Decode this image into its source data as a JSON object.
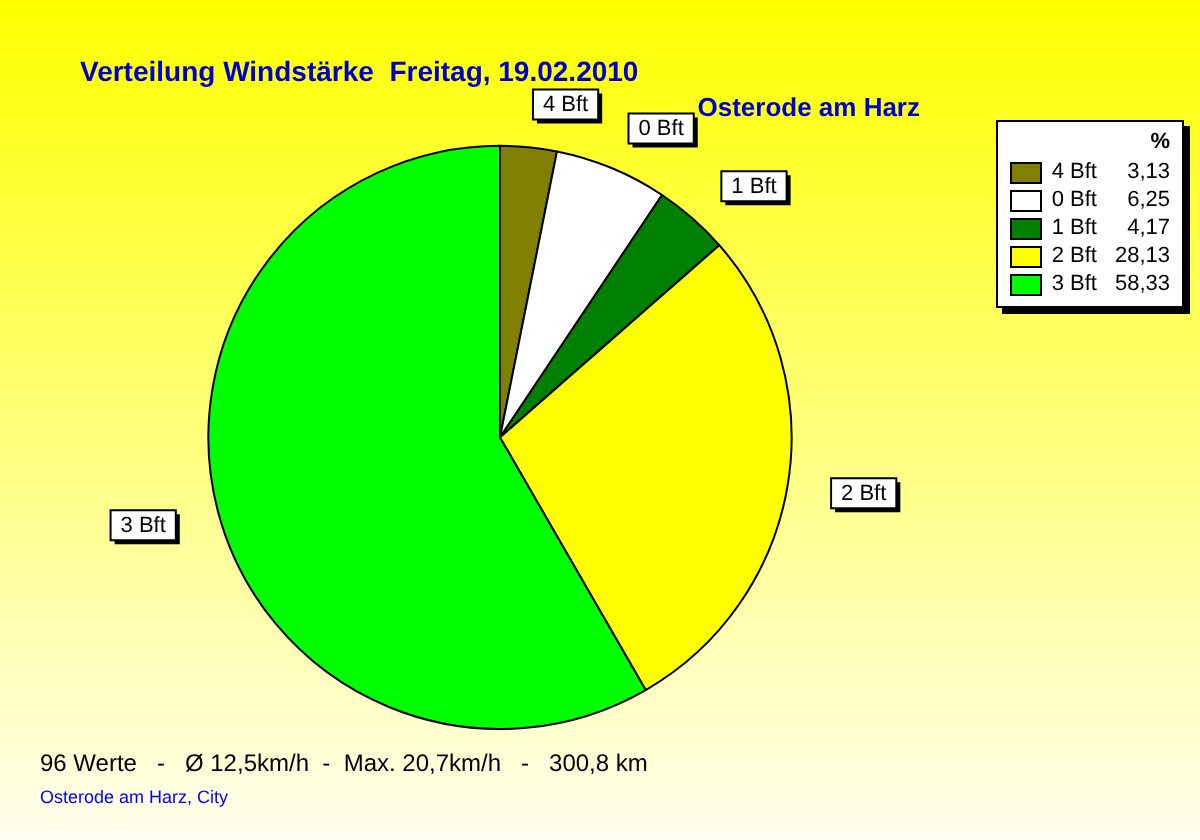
{
  "chart_data": {
    "type": "pie",
    "title": "Verteilung Windstärke  Freitag, 19.02.2010",
    "subtitle": "Osterode am Harz",
    "categories": [
      "4 Bft",
      "0 Bft",
      "1 Bft",
      "2 Bft",
      "3 Bft"
    ],
    "values": [
      3.13,
      6.25,
      4.17,
      28.13,
      58.33
    ],
    "value_labels": [
      "3,13",
      "6,25",
      "4,17",
      "28,13",
      "58,33"
    ],
    "colors": [
      "#808000",
      "#ffffff",
      "#008000",
      "#ffff00",
      "#00ff00"
    ],
    "legend": "top right",
    "legend_title": "%",
    "annotations": [
      "96 Werte   -   Ø 12,5km/h  -  Max. 20,7km/h   -   300,8 km",
      "Osterode am Harz, City"
    ]
  }
}
